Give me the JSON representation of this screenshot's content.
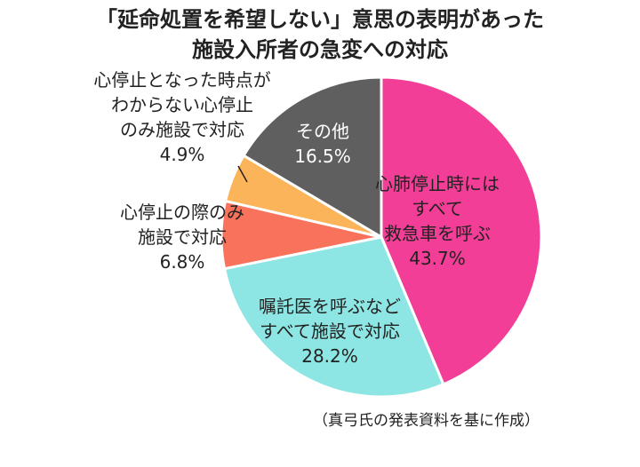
{
  "title_lines": [
    "「延命処置を希望しない」意思の表明があった",
    "施設入所者の急変への対応"
  ],
  "source": "（真弓氏の発表資料を基に作成）",
  "chart_data": {
    "type": "pie",
    "start_angle_deg": 0,
    "direction": "clockwise",
    "slices": [
      {
        "label_lines": [
          "心肺停止時には",
          "すべて",
          "救急車を呼ぶ"
        ],
        "value": 43.7,
        "value_text": "43.7%",
        "color": "#f23e96",
        "label_color": "#222222",
        "label_inside": true
      },
      {
        "label_lines": [
          "嘱託医を呼ぶなど",
          "すべて施設で対応"
        ],
        "value": 28.2,
        "value_text": "28.2%",
        "color": "#8de6e3",
        "label_color": "#222222",
        "label_inside": true
      },
      {
        "label_lines": [
          "心停止の際のみ",
          "施設で対応"
        ],
        "value": 6.8,
        "value_text": "6.8%",
        "color": "#f8725c",
        "label_color": "#222222",
        "label_inside": false
      },
      {
        "label_lines": [
          "心停止となった時点が",
          "わからない心停止",
          "のみ施設で対応"
        ],
        "value": 4.9,
        "value_text": "4.9%",
        "color": "#fbb45a",
        "label_color": "#222222",
        "label_inside": false
      },
      {
        "label_lines": [
          "その他"
        ],
        "value": 16.5,
        "value_text": "16.5%",
        "color": "#5f5f5f",
        "label_color": "#ffffff",
        "label_inside": true
      }
    ]
  }
}
